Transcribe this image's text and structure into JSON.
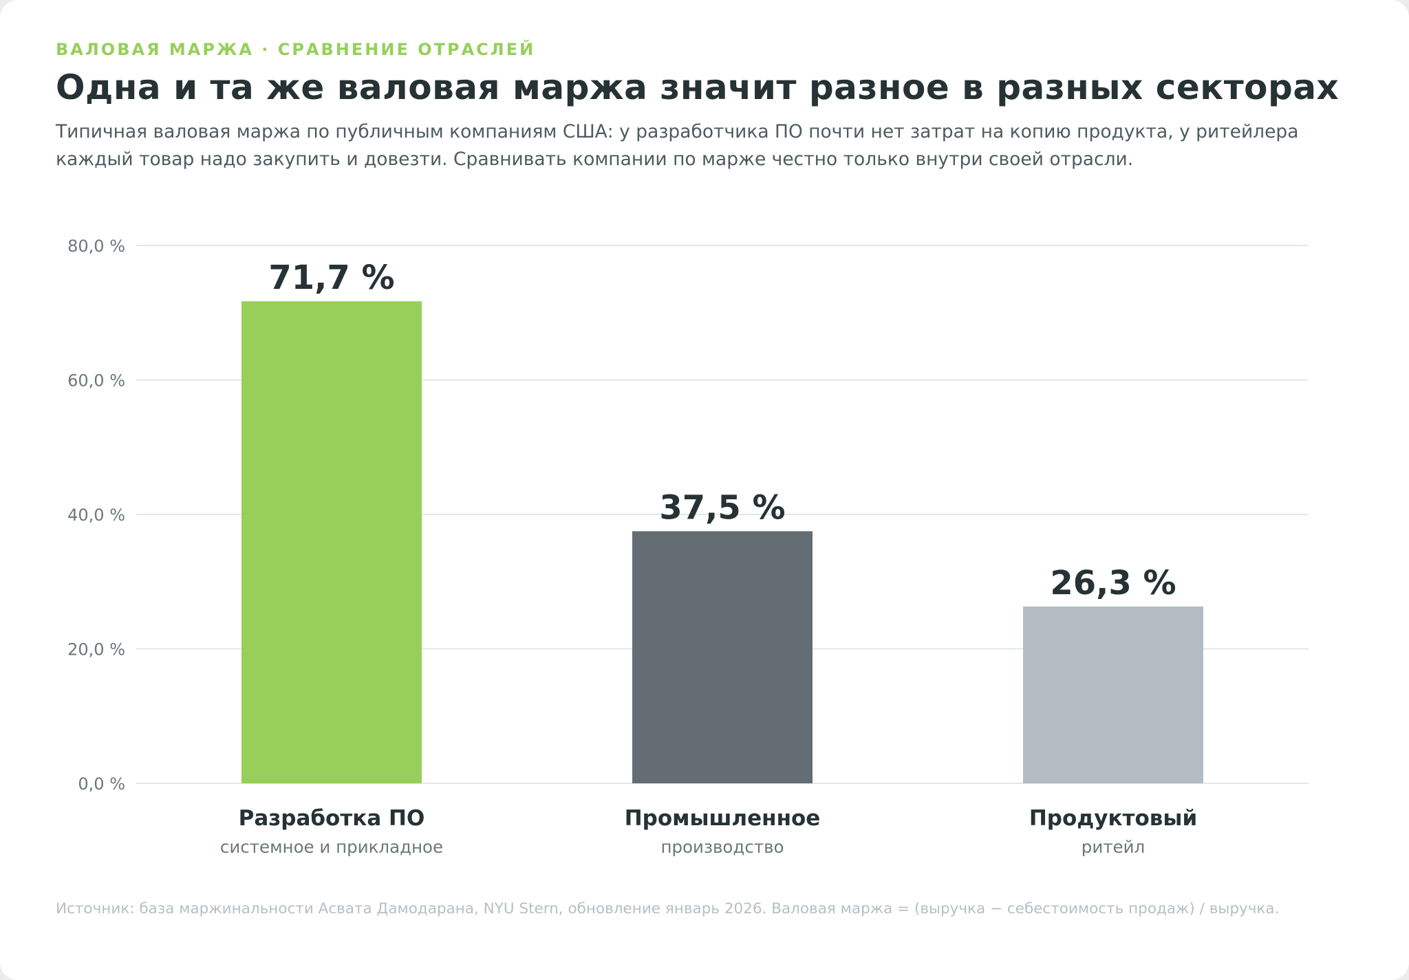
{
  "header": {
    "eyebrow": "ВАЛОВАЯ МАРЖА · СРАВНЕНИЕ ОТРАСЛЕЙ",
    "title": "Одна и та же валовая маржа значит разное в разных секторах",
    "subtitle": "Типичная валовая маржа по публичным компаниям США: у разработчика ПО почти нет затрат на копию продукта, у ритейлера каждый товар надо закупить и довезти. Сравнивать компании по марже честно только внутри своей отрасли."
  },
  "chart_data": {
    "type": "bar",
    "categories": [
      "Разработка ПО",
      "Промышленное",
      "Продуктовый"
    ],
    "category_sublabels": [
      "системное и прикладное",
      "производство",
      "ритейл"
    ],
    "values": [
      71.7,
      37.5,
      26.3
    ],
    "value_labels": [
      "71,7 %",
      "37,5 %",
      "26,3 %"
    ],
    "bar_colors": [
      "#97cf5a",
      "#636d73",
      "#b2bcc2"
    ],
    "ylim": [
      0,
      80
    ],
    "yticks": [
      0,
      20,
      40,
      60,
      80
    ],
    "ytick_labels": [
      "0,0 %",
      "20,0 %",
      "40,0 %",
      "60,0 %",
      "80,0 %"
    ],
    "grid": true,
    "xlabel": "",
    "ylabel": ""
  },
  "footer": {
    "source": "Источник: база маржинальности Асвата Дамодарана, NYU Stern, обновление январь 2026. Валовая маржа = (выручка − себестоимость продаж) / выручка."
  },
  "colors": {
    "accent": "#97cf5a",
    "title": "#263234",
    "text": "#4e5b5f",
    "axis_text": "#6c777b",
    "grid": "#e3e7e9",
    "muted": "#b6bfc4"
  }
}
